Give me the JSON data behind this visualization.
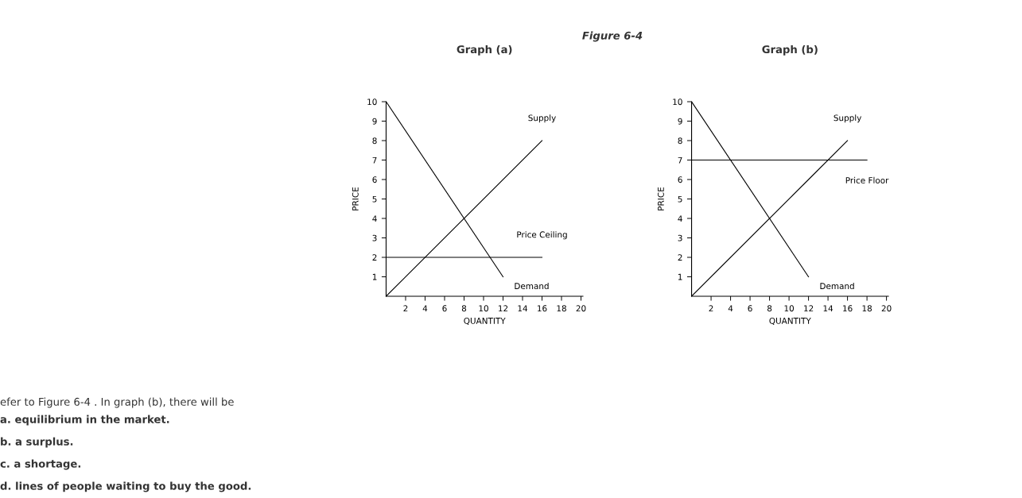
{
  "chart_data": [
    {
      "type": "line",
      "title": "Graph (a)",
      "xlabel": "QUANTITY",
      "ylabel": "PRICE",
      "xlim": [
        0,
        20.2
      ],
      "ylim": [
        0,
        10
      ],
      "xticks": [
        2,
        4,
        6,
        8,
        10,
        12,
        14,
        16,
        18,
        20
      ],
      "yticks": [
        1,
        2,
        3,
        4,
        5,
        6,
        7,
        8,
        9,
        10
      ],
      "grid": false,
      "legend": false,
      "marker": "none",
      "line_style": "solid",
      "series": [
        {
          "name": "Demand",
          "color": "#000000",
          "x": [
            0,
            12
          ],
          "values": [
            10,
            1
          ]
        },
        {
          "name": "Supply",
          "color": "#000000",
          "x": [
            0,
            16
          ],
          "values": [
            0,
            8
          ]
        },
        {
          "name": "Price Ceiling",
          "color": "#000000",
          "x": [
            0,
            16
          ],
          "values": [
            2,
            2
          ]
        }
      ],
      "annotations": [
        "Figure 6-4",
        "efer to Figure 6-4 . In graph (b), there will be",
        "a. equilibrium in the market.",
        "b. a surplus.",
        "c. a shortage.",
        "d. lines of people waiting to buy the good."
      ]
    },
    {
      "type": "line",
      "title": "Graph (b)",
      "xlabel": "QUANTITY",
      "ylabel": "PRICE",
      "xlim": [
        0,
        20.2
      ],
      "ylim": [
        0,
        10
      ],
      "xticks": [
        2,
        4,
        6,
        8,
        10,
        12,
        14,
        16,
        18,
        20
      ],
      "yticks": [
        1,
        2,
        3,
        4,
        5,
        6,
        7,
        8,
        9,
        10
      ],
      "grid": false,
      "legend": false,
      "marker": "none",
      "line_style": "solid",
      "series": [
        {
          "name": "Demand",
          "color": "#000000",
          "x": [
            0,
            12
          ],
          "values": [
            10,
            1
          ]
        },
        {
          "name": "Supply",
          "color": "#000000",
          "x": [
            0,
            16
          ],
          "values": [
            0,
            8
          ]
        },
        {
          "name": "Price Floor",
          "color": "#000000",
          "x": [
            0,
            18
          ],
          "values": [
            7,
            7
          ]
        }
      ]
    }
  ]
}
